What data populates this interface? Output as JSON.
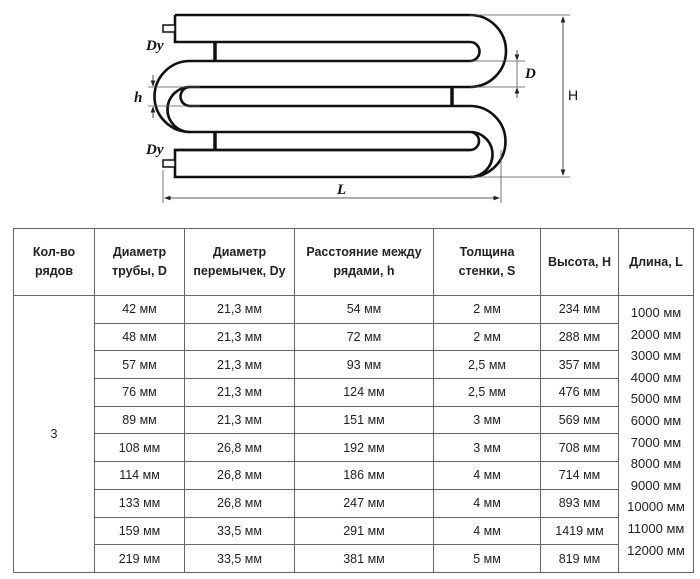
{
  "diagram": {
    "labels": {
      "dy_top": "Dy",
      "dy_bottom": "Dy",
      "h": "h",
      "d": "D",
      "height": "H",
      "length": "L"
    }
  },
  "table": {
    "headers": [
      [
        "Кол-во",
        "рядов"
      ],
      [
        "Диаметр",
        "трубы, D"
      ],
      [
        "Диаметр",
        "перемычек, Dy"
      ],
      [
        "Расстояние между",
        "рядами, h"
      ],
      [
        "Толщина",
        "стенки, S"
      ],
      [
        "Высота, H"
      ],
      [
        "Длина, L"
      ]
    ],
    "rows_count": "3",
    "rows": [
      [
        "42 мм",
        "21,3 мм",
        "54 мм",
        "2 мм",
        "234 мм"
      ],
      [
        "48 мм",
        "21,3 мм",
        "72 мм",
        "2 мм",
        "288 мм"
      ],
      [
        "57 мм",
        "21,3 мм",
        "93 мм",
        "2,5 мм",
        "357 мм"
      ],
      [
        "76 мм",
        "21,3 мм",
        "124 мм",
        "2,5 мм",
        "476 мм"
      ],
      [
        "89 мм",
        "21,3 мм",
        "151 мм",
        "3 мм",
        "569 мм"
      ],
      [
        "108 мм",
        "26,8 мм",
        "192 мм",
        "3 мм",
        "708 мм"
      ],
      [
        "114 мм",
        "26,8 мм",
        "186 мм",
        "4 мм",
        "714 мм"
      ],
      [
        "133 мм",
        "26,8 мм",
        "247 мм",
        "4 мм",
        "893 мм"
      ],
      [
        "159 мм",
        "33,5 мм",
        "291 мм",
        "4 мм",
        "1419 мм"
      ],
      [
        "219 мм",
        "33,5 мм",
        "381 мм",
        "5 мм",
        "819 мм"
      ]
    ],
    "lengths": [
      "1000 мм",
      "2000 мм",
      "3000 мм",
      "4000 мм",
      "5000 мм",
      "6000 мм",
      "7000 мм",
      "8000 мм",
      "9000 мм",
      "10000 мм",
      "11000 мм",
      "12000 мм"
    ]
  }
}
